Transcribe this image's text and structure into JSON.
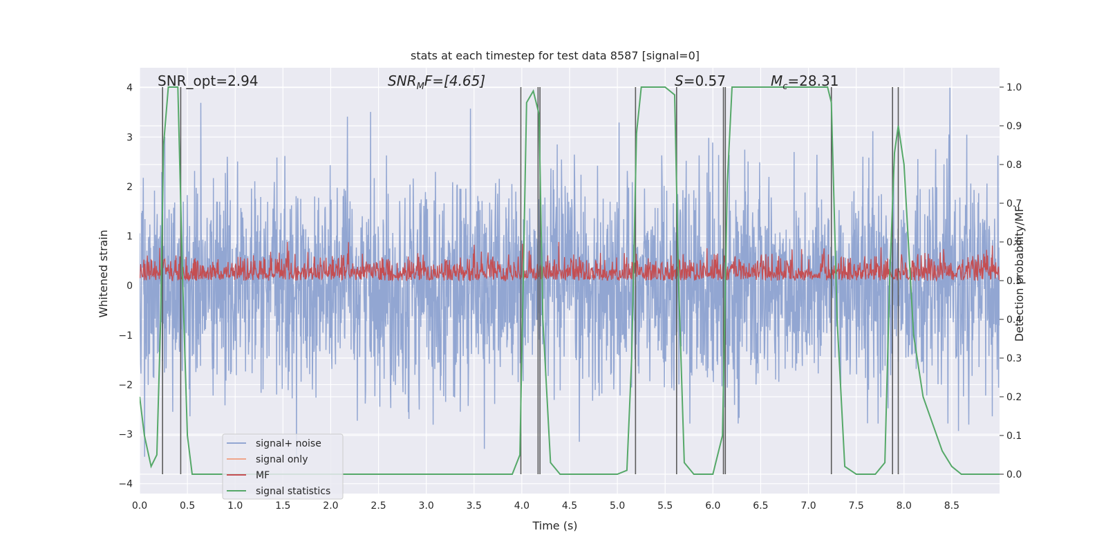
{
  "chart_data": {
    "type": "line",
    "title": "stats at each timestep for test data 8587 [signal=0]",
    "xlabel": "Time (s)",
    "ylabel_left": "Whitened strain",
    "ylabel_right": "Detection probability/MF",
    "xlim": [
      0.0,
      9.0
    ],
    "ylim_left": [
      -4.2,
      4.4
    ],
    "ylim_right": [
      -0.05,
      1.05
    ],
    "xticks": [
      "0.0",
      "0.5",
      "1.0",
      "1.5",
      "2.0",
      "2.5",
      "3.0",
      "3.5",
      "4.0",
      "4.5",
      "5.0",
      "5.5",
      "6.0",
      "6.5",
      "7.0",
      "7.5",
      "8.0",
      "8.5"
    ],
    "yticks_left": [
      "−4",
      "−3",
      "−2",
      "−1",
      "0",
      "1",
      "2",
      "3",
      "4"
    ],
    "yticks_right": [
      "0.0",
      "0.1",
      "0.2",
      "0.3",
      "0.4",
      "0.5",
      "0.6",
      "0.7",
      "0.8",
      "0.9",
      "1.0"
    ],
    "grid": true,
    "legend_position": "lower-left",
    "annotations": {
      "snr_opt": "SNR_opt=2.94",
      "snr_mf_main": "SNR",
      "snr_mf_sub": "M",
      "snr_mf_rest": "F=[4.65]",
      "s_main": "S",
      "s_rest": "=0.57",
      "mc_main": "M",
      "mc_sub": "c",
      "mc_rest": "=28.31"
    },
    "series": [
      {
        "name": "signal+ noise",
        "color": "#92a6d2",
        "axis": "left",
        "description_values": "noise band roughly symmetric, envelope about ±2 with spikes to ±4"
      },
      {
        "name": "signal only",
        "color": "#f0a58a",
        "axis": "left",
        "values": []
      },
      {
        "name": "MF",
        "color": "#c44e52",
        "axis": "right",
        "range": [
          0.5,
          0.6
        ]
      },
      {
        "name": "signal statistics",
        "color": "#55a868",
        "axis": "right",
        "x": [
          0.0,
          0.05,
          0.12,
          0.18,
          0.22,
          0.25,
          0.3,
          0.4,
          0.45,
          0.5,
          0.55,
          1.0,
          2.0,
          2.4,
          2.6,
          3.0,
          3.9,
          3.98,
          4.05,
          4.12,
          4.18,
          4.22,
          4.3,
          4.4,
          4.6,
          5.0,
          5.1,
          5.15,
          5.2,
          5.25,
          5.3,
          5.5,
          5.6,
          5.64,
          5.7,
          5.8,
          6.0,
          6.1,
          6.15,
          6.2,
          6.3,
          7.2,
          7.24,
          7.3,
          7.38,
          7.5,
          7.7,
          7.8,
          7.85,
          7.9,
          7.94,
          8.0,
          8.1,
          8.2,
          8.3,
          8.4,
          8.5,
          8.6,
          9.0
        ],
        "values": [
          0.2,
          0.1,
          0.02,
          0.05,
          0.4,
          0.85,
          1.0,
          1.0,
          0.5,
          0.1,
          0.0,
          0.0,
          0.0,
          0.0,
          0.0,
          0.0,
          0.0,
          0.05,
          0.96,
          0.99,
          0.93,
          0.4,
          0.03,
          0.0,
          0.0,
          0.0,
          0.01,
          0.3,
          0.88,
          1.0,
          1.0,
          1.0,
          0.98,
          0.5,
          0.03,
          0.0,
          0.0,
          0.1,
          0.75,
          1.0,
          1.0,
          1.0,
          0.96,
          0.4,
          0.02,
          0.0,
          0.0,
          0.03,
          0.5,
          0.83,
          0.9,
          0.8,
          0.36,
          0.2,
          0.13,
          0.06,
          0.02,
          0.0,
          0.0
        ]
      }
    ],
    "vertical_lines_x": [
      0.24,
      0.43,
      3.99,
      4.17,
      4.19,
      5.19,
      5.62,
      6.11,
      6.13,
      7.24,
      7.88,
      7.94
    ]
  }
}
